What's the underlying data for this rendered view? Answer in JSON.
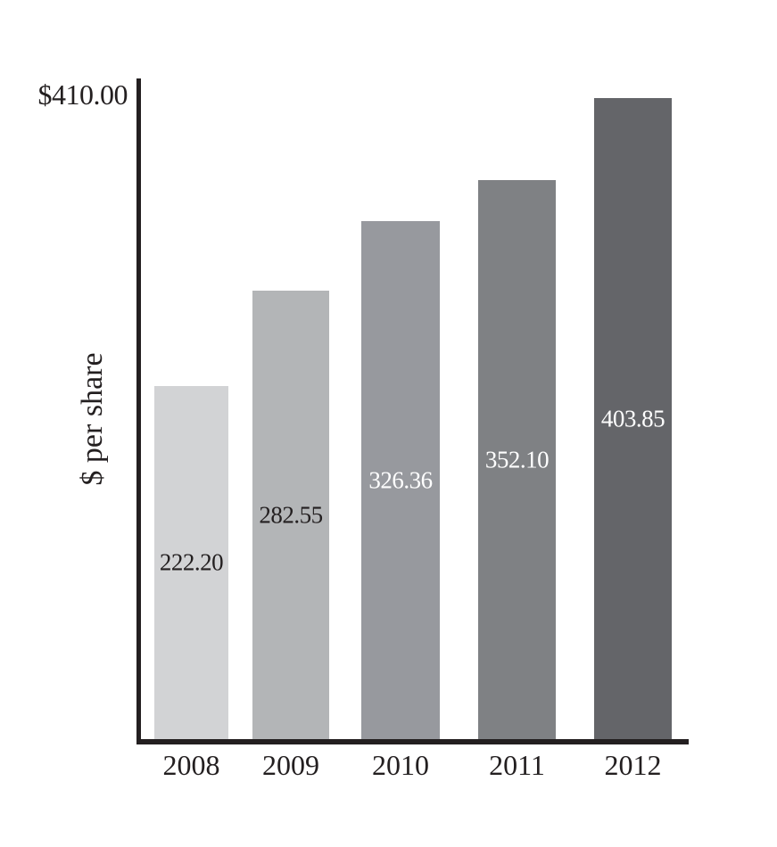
{
  "chart_data": {
    "type": "bar",
    "title": "",
    "xlabel": "",
    "ylabel": "$ per share",
    "y_max_tick_label": "$410.00",
    "ylim": [
      0,
      410
    ],
    "grid": false,
    "legend": false,
    "categories": [
      "2008",
      "2009",
      "2010",
      "2011",
      "2012"
    ],
    "values": [
      222.2,
      282.55,
      326.36,
      352.1,
      403.85
    ],
    "bar_labels": [
      "222.20",
      "282.55",
      "326.36",
      "352.10",
      "403.85"
    ],
    "bar_colors": [
      "#d2d3d5",
      "#b3b5b7",
      "#97999e",
      "#7f8184",
      "#646569"
    ],
    "bar_label_colors": [
      "#231f20",
      "#231f20",
      "#ffffff",
      "#ffffff",
      "#ffffff"
    ],
    "axis_color": "#231f20"
  }
}
